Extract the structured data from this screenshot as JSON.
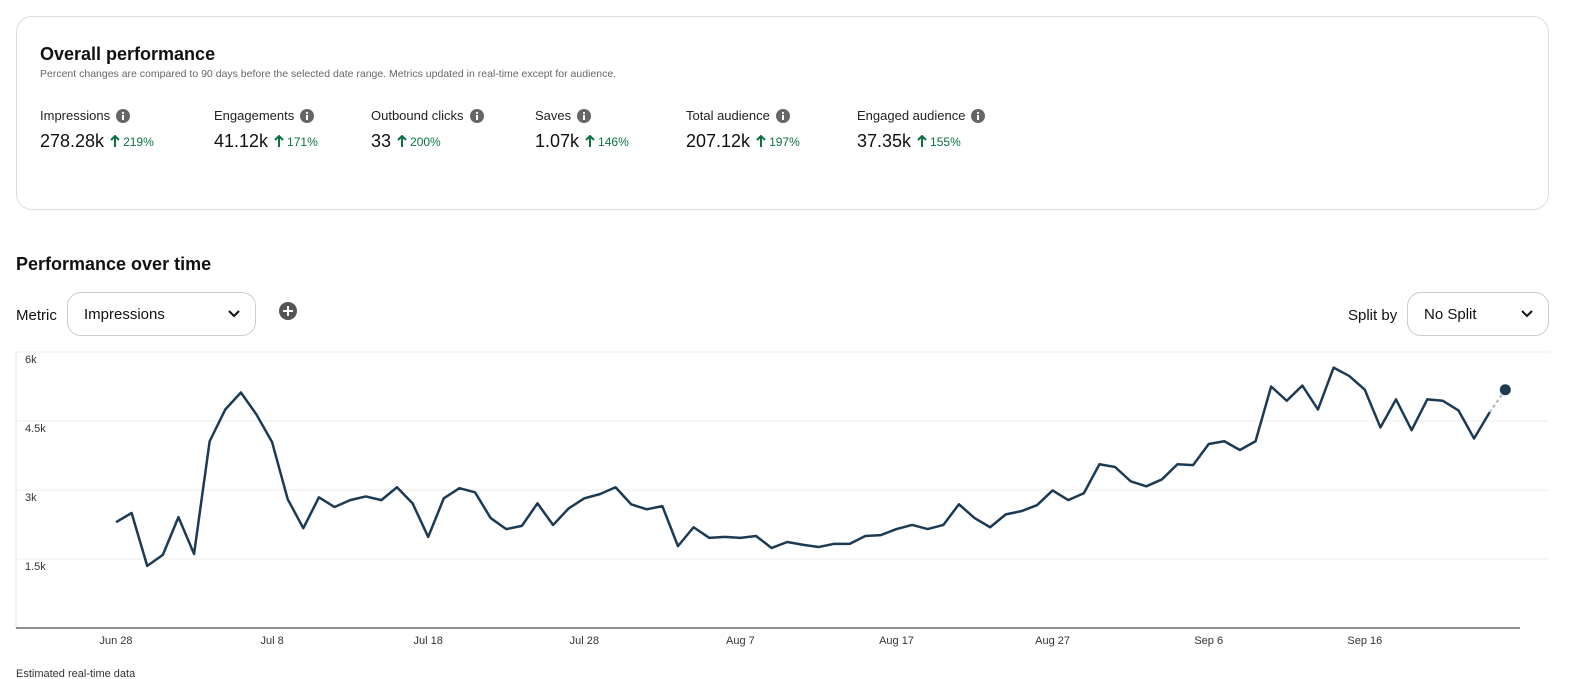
{
  "overall_performance": {
    "title": "Overall performance",
    "subtitle": "Percent changes are compared to 90 days before the selected date range. Metrics updated in real-time except for audience.",
    "metrics": [
      {
        "label": "Impressions",
        "value": "278.28k",
        "change": "219%"
      },
      {
        "label": "Engagements",
        "value": "41.12k",
        "change": "171%"
      },
      {
        "label": "Outbound clicks",
        "value": "33",
        "change": "200%"
      },
      {
        "label": "Saves",
        "value": "1.07k",
        "change": "146%"
      },
      {
        "label": "Total audience",
        "value": "207.12k",
        "change": "197%"
      },
      {
        "label": "Engaged audience",
        "value": "37.35k",
        "change": "155%"
      }
    ]
  },
  "controls": {
    "section_title": "Performance over time",
    "metric_label": "Metric",
    "metric_value": "Impressions",
    "split_label": "Split by",
    "split_value": "No Split"
  },
  "chart_data": {
    "type": "line",
    "color": "#1d3a55",
    "grid": true,
    "last_point_estimated": true,
    "categories": [
      "Jun 28",
      null,
      null,
      null,
      null,
      null,
      null,
      null,
      null,
      null,
      "Jul 8",
      null,
      null,
      null,
      null,
      null,
      null,
      null,
      null,
      null,
      "Jul 18",
      null,
      null,
      null,
      null,
      null,
      null,
      null,
      null,
      null,
      "Jul 28",
      null,
      null,
      null,
      null,
      null,
      null,
      null,
      null,
      null,
      "Aug 7",
      null,
      null,
      null,
      null,
      null,
      null,
      null,
      null,
      null,
      "Aug 17",
      null,
      null,
      null,
      null,
      null,
      null,
      null,
      null,
      null,
      "Aug 27",
      null,
      null,
      null,
      null,
      null,
      null,
      null,
      null,
      null,
      "Sep 6",
      null,
      null,
      null,
      null,
      null,
      null,
      null,
      null,
      null,
      "Sep 16",
      null,
      null,
      null,
      null,
      null,
      null,
      null,
      null,
      null
    ],
    "values": [
      2300,
      2500,
      1350,
      1590,
      2410,
      1610,
      4060,
      4750,
      5120,
      4640,
      4040,
      2800,
      2170,
      2840,
      2630,
      2780,
      2860,
      2780,
      3060,
      2710,
      1980,
      2820,
      3040,
      2950,
      2390,
      2150,
      2220,
      2710,
      2240,
      2600,
      2820,
      2910,
      3060,
      2690,
      2580,
      2650,
      1780,
      2190,
      1960,
      1980,
      1960,
      2000,
      1740,
      1870,
      1810,
      1760,
      1830,
      1830,
      2000,
      2020,
      2150,
      2240,
      2150,
      2240,
      2690,
      2390,
      2190,
      2470,
      2540,
      2670,
      2990,
      2780,
      2930,
      3560,
      3500,
      3190,
      3080,
      3230,
      3560,
      3540,
      4000,
      4060,
      3870,
      4060,
      5250,
      4940,
      5270,
      4750,
      5660,
      5480,
      5180,
      4360,
      4970,
      4300,
      4970,
      4940,
      4730,
      4120,
      4690,
      5180
    ],
    "ylim": [
      0,
      6000
    ],
    "yticks": [
      {
        "value": 1500,
        "label": "1.5k"
      },
      {
        "value": 3000,
        "label": "3k"
      },
      {
        "value": 4500,
        "label": "4.5k"
      },
      {
        "value": 6000,
        "label": "6k"
      }
    ],
    "footnote": "Estimated real-time data"
  }
}
